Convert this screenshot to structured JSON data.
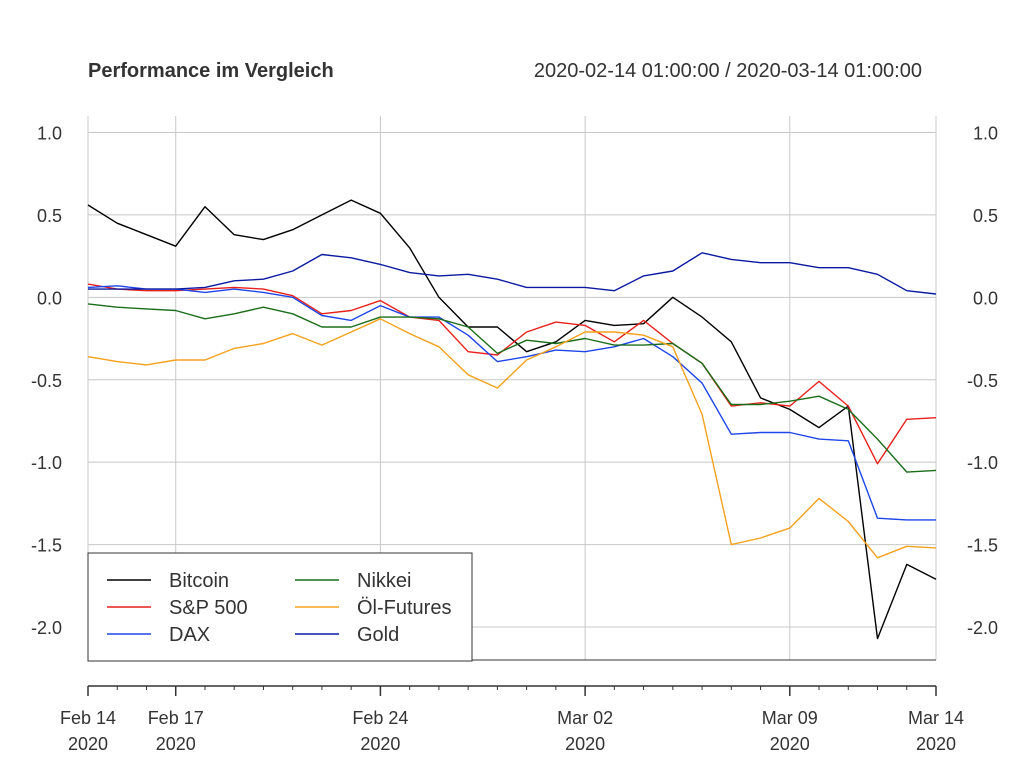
{
  "chart_data": {
    "type": "line",
    "title": "Performance im Vergleich",
    "subtitle": "2020-02-14 01:00:00 / 2020-03-14 01:00:00",
    "xlabel": "",
    "ylabel": "",
    "x": [
      "2020-02-14",
      "2020-02-15",
      "2020-02-16",
      "2020-02-17",
      "2020-02-18",
      "2020-02-19",
      "2020-02-20",
      "2020-02-21",
      "2020-02-22",
      "2020-02-23",
      "2020-02-24",
      "2020-02-25",
      "2020-02-26",
      "2020-02-27",
      "2020-02-28",
      "2020-02-29",
      "2020-03-01",
      "2020-03-02",
      "2020-03-03",
      "2020-03-04",
      "2020-03-05",
      "2020-03-06",
      "2020-03-07",
      "2020-03-08",
      "2020-03-09",
      "2020-03-10",
      "2020-03-11",
      "2020-03-12",
      "2020-03-13",
      "2020-03-14"
    ],
    "ylim": [
      -2.2,
      1.1
    ],
    "grid": true,
    "legend_position": "bottom-left",
    "x_ticks": [
      {
        "date": "2020-02-14",
        "line1": "Feb 14",
        "line2": "2020"
      },
      {
        "date": "2020-02-17",
        "line1": "Feb 17",
        "line2": "2020"
      },
      {
        "date": "2020-02-24",
        "line1": "Feb 24",
        "line2": "2020"
      },
      {
        "date": "2020-03-02",
        "line1": "Mar 02",
        "line2": "2020"
      },
      {
        "date": "2020-03-09",
        "line1": "Mar 09",
        "line2": "2020"
      },
      {
        "date": "2020-03-14",
        "line1": "Mar 14",
        "line2": "2020"
      }
    ],
    "y_ticks": [
      {
        "value": 1.0,
        "label": "1.0"
      },
      {
        "value": 0.5,
        "label": "0.5"
      },
      {
        "value": 0.0,
        "label": "0.0"
      },
      {
        "value": -0.5,
        "label": "-0.5"
      },
      {
        "value": -1.0,
        "label": "-1.0"
      },
      {
        "value": -1.5,
        "label": "-1.5"
      },
      {
        "value": -2.0,
        "label": "-2.0"
      }
    ],
    "series": [
      {
        "name": "Bitcoin",
        "color": "#000000",
        "values": [
          0.56,
          0.45,
          0.38,
          0.31,
          0.55,
          0.38,
          0.35,
          0.41,
          0.5,
          0.59,
          0.51,
          0.3,
          0.0,
          -0.18,
          -0.18,
          -0.33,
          -0.27,
          -0.14,
          -0.17,
          -0.16,
          0.0,
          -0.12,
          -0.27,
          -0.61,
          -0.68,
          -0.79,
          -0.66,
          -2.07,
          -1.62,
          -1.71
        ]
      },
      {
        "name": "S&P 500",
        "color": "#e8201a",
        "values": [
          0.08,
          0.05,
          0.04,
          0.04,
          0.05,
          0.06,
          0.05,
          0.01,
          -0.1,
          -0.08,
          -0.02,
          -0.12,
          -0.14,
          -0.33,
          -0.35,
          -0.21,
          -0.15,
          -0.17,
          -0.27,
          -0.14,
          -0.28,
          -0.4,
          -0.66,
          -0.64,
          -0.66,
          -0.51,
          -0.66,
          -1.01,
          -0.74,
          -0.73
        ]
      },
      {
        "name": "DAX",
        "color": "#1e46e8",
        "values": [
          0.06,
          0.07,
          0.05,
          0.05,
          0.03,
          0.05,
          0.03,
          0.0,
          -0.11,
          -0.14,
          -0.05,
          -0.12,
          -0.12,
          -0.23,
          -0.39,
          -0.36,
          -0.32,
          -0.33,
          -0.3,
          -0.25,
          -0.36,
          -0.52,
          -0.83,
          -0.82,
          -0.82,
          -0.86,
          -0.87,
          -1.34,
          -1.35,
          -1.35
        ]
      },
      {
        "name": "Nikkei",
        "color": "#1a6e1a",
        "values": [
          -0.04,
          -0.06,
          -0.07,
          -0.08,
          -0.13,
          -0.1,
          -0.06,
          -0.1,
          -0.18,
          -0.18,
          -0.12,
          -0.12,
          -0.13,
          -0.18,
          -0.34,
          -0.26,
          -0.28,
          -0.25,
          -0.29,
          -0.29,
          -0.28,
          -0.4,
          -0.65,
          -0.65,
          -0.63,
          -0.6,
          -0.68,
          -0.86,
          -1.06,
          -1.05
        ]
      },
      {
        "name": "Öl-Futures",
        "color": "#f5a11c",
        "values": [
          -0.36,
          -0.39,
          -0.41,
          -0.38,
          -0.38,
          -0.31,
          -0.28,
          -0.22,
          -0.29,
          -0.21,
          -0.13,
          -0.22,
          -0.3,
          -0.47,
          -0.55,
          -0.38,
          -0.3,
          -0.21,
          -0.21,
          -0.23,
          -0.3,
          -0.71,
          -1.5,
          -1.46,
          -1.4,
          -1.22,
          -1.36,
          -1.58,
          -1.51,
          -1.52
        ]
      },
      {
        "name": "Gold",
        "color": "#0a1aa0",
        "values": [
          0.05,
          0.05,
          0.05,
          0.05,
          0.06,
          0.1,
          0.11,
          0.16,
          0.26,
          0.24,
          0.2,
          0.15,
          0.13,
          0.14,
          0.11,
          0.06,
          0.06,
          0.06,
          0.04,
          0.13,
          0.16,
          0.27,
          0.23,
          0.21,
          0.21,
          0.18,
          0.18,
          0.14,
          0.04,
          0.02
        ]
      }
    ]
  }
}
